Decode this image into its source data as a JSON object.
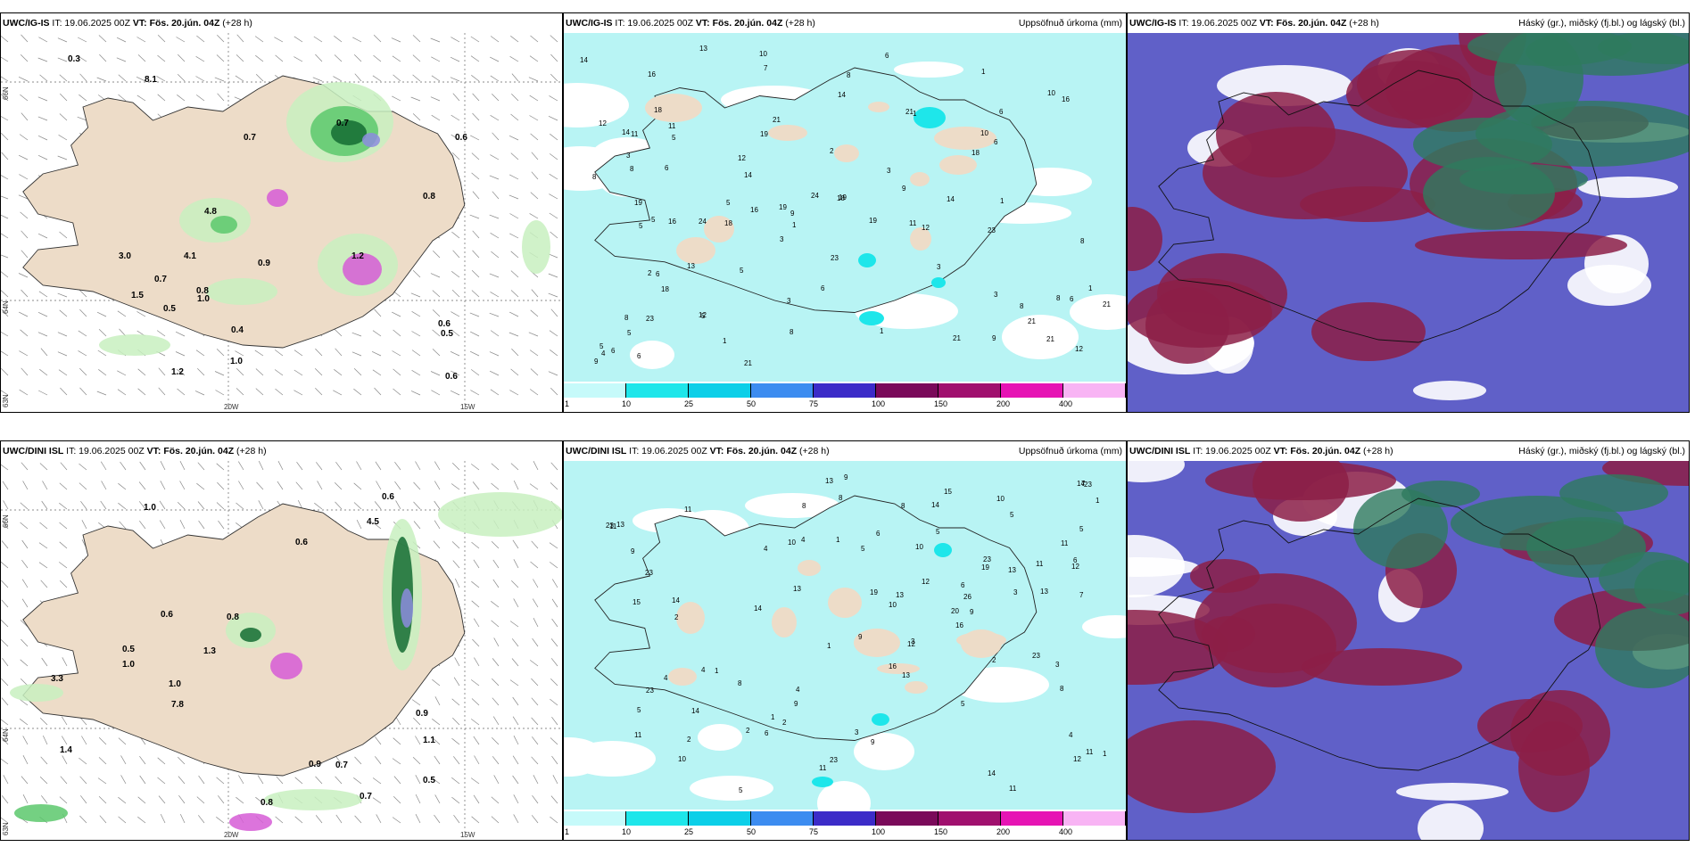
{
  "panels": {
    "p1": {
      "model": "UWC/IG-IS",
      "it": "IT: 19.06.2025 00Z",
      "vt": "VT: Fös. 20.jún. 04Z",
      "lead": "(+28 h)",
      "right": ""
    },
    "p2": {
      "model": "UWC/IG-IS",
      "it": "IT: 19.06.2025 00Z",
      "vt": "VT: Fös. 20.jún. 04Z",
      "lead": "(+28 h)",
      "right": "Uppsöfnuð úrkoma (mm)"
    },
    "p3": {
      "model": "UWC/IG-IS",
      "it": "IT: 19.06.2025 00Z",
      "vt": "VT: Fös. 20.jún. 04Z",
      "lead": "(+28 h)",
      "right": "Háský (gr.), miðský (fj.bl.) og lágský (bl.)"
    },
    "p4": {
      "model": "UWC/DINI ISL",
      "it": "IT: 19.06.2025 00Z",
      "vt": "VT: Fös. 20.jún. 04Z",
      "lead": "(+28 h)",
      "right": ""
    },
    "p5": {
      "model": "UWC/DINI ISL",
      "it": "IT: 19.06.2025 00Z",
      "vt": "VT: Fös. 20.jún. 04Z",
      "lead": "(+28 h)",
      "right": "Uppsöfnuð úrkoma (mm)"
    },
    "p6": {
      "model": "UWC/DINI ISL",
      "it": "IT: 19.06.2025 00Z",
      "vt": "VT: Fös. 20.jún. 04Z",
      "lead": "(+28 h)",
      "right": "Háský (gr.), miðský (fj.bl.) og lágský (bl.)"
    }
  },
  "axis_labels": {
    "lat66": "66N",
    "lat64": "64N",
    "lat63": "63N",
    "lon20": "20W",
    "lon15": "15W"
  },
  "colorbar": {
    "labels": [
      "1",
      "10",
      "25",
      "50",
      "75",
      "100",
      "150",
      "200",
      "400"
    ],
    "colors": [
      "#c6fafa",
      "#1ee6ea",
      "#0ccfe8",
      "#3c8cf0",
      "#3c2cc8",
      "#7a0a5a",
      "#a0106e",
      "#e614b4",
      "#f8b4f4"
    ]
  },
  "precip_labels_top": [
    "0.7",
    "0.6",
    "0.5",
    "0.8",
    "1.2",
    "4.1",
    "8.1",
    "3.0",
    "4.8",
    "0.9",
    "0.6",
    "0.5",
    "1.0",
    "0.7",
    "0.4",
    "1.5",
    "0.6",
    "0.3",
    "1.0",
    "0.8",
    "1.2",
    "0.7"
  ],
  "precip_labels_bottom": [
    "0.5",
    "0.6",
    "0.8",
    "0.9",
    "0.7",
    "1.1",
    "4.5",
    "7.8",
    "3.3",
    "1.0",
    "1.4",
    "0.6",
    "0.5",
    "1.0",
    "0.9",
    "0.7",
    "0.6",
    "0.8",
    "1.0",
    "1.3"
  ],
  "accum_labels_top": [
    "2",
    "3",
    "1",
    "4",
    "5",
    "6",
    "7",
    "8",
    "9",
    "10",
    "11",
    "12",
    "13",
    "14",
    "16",
    "18",
    "19",
    "21",
    "23",
    "24"
  ],
  "accum_labels_bottom": [
    "3",
    "1",
    "2",
    "4",
    "5",
    "6",
    "7",
    "8",
    "9",
    "10",
    "11",
    "12",
    "13",
    "14",
    "15",
    "16",
    "19",
    "20",
    "23",
    "26"
  ],
  "colors": {
    "land": "#eddcc8",
    "light_green": "#c8f0c0",
    "mid_green": "#5cc86c",
    "dark_green": "#146c32",
    "lavender": "#8c8cde",
    "magenta": "#d65cd6",
    "cloud_blue": "#6060c8",
    "cloud_maroon": "#8c1e46",
    "cloud_green": "#2e7a5e"
  }
}
